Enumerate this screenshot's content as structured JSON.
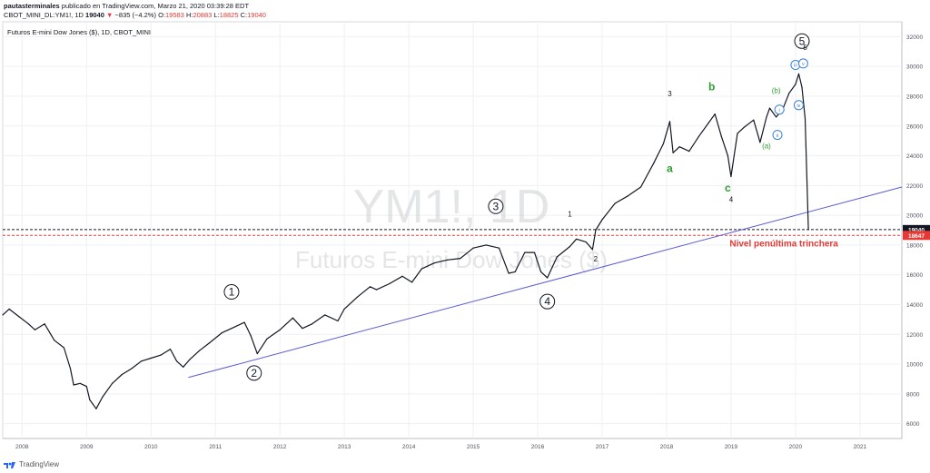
{
  "header": {
    "author": "pautasterminales",
    "published": "publicado en TradingView.com, Marzo 21, 2020 03:39:28 EDT",
    "ticker_line": "CBOT_MINI_DL:YM1!, 1D",
    "last": "19040",
    "change": "−835 (−4.2%)",
    "o_label": "O:",
    "o": "19583",
    "h_label": "H:",
    "h": "20883",
    "l_label": "L:",
    "l": "18825",
    "c_label": "C:",
    "c": "19040"
  },
  "legend_title": "Futuros E-mini Dow Jones ($), 1D, CBOT_MINI",
  "watermark": {
    "symbol": "YM1!, 1D",
    "name": "Futuros E-mini Dow Jones ($)"
  },
  "footer": {
    "brand": "TradingView"
  },
  "colors": {
    "price": "#131722",
    "trendline": "#5b5bd6",
    "dashed_black": "#131722",
    "dashed_red": "#e53935",
    "wave_green": "#2e9e2e",
    "wave_blue": "#3a7fd4"
  },
  "chart_data": {
    "type": "line",
    "title": "Futuros E-mini Dow Jones ($), 1D, CBOT_MINI",
    "x_axis_ticks": [
      "2008",
      "2009",
      "2010",
      "2011",
      "2012",
      "2013",
      "2014",
      "2015",
      "2016",
      "2017",
      "2018",
      "2019",
      "2020",
      "2021"
    ],
    "y_axis_ticks": [
      6000,
      8000,
      10000,
      12000,
      14000,
      16000,
      18000,
      20000,
      22000,
      24000,
      26000,
      28000,
      30000,
      32000
    ],
    "ylim": [
      5000,
      33000
    ],
    "xlim": [
      2007.7,
      2021.65
    ],
    "series": [
      {
        "x": [
          2007.7,
          2007.8,
          2007.95,
          2008.1,
          2008.2,
          2008.35,
          2008.5,
          2008.65,
          2008.75,
          2008.8,
          2008.9,
          2009.0,
          2009.05,
          2009.15,
          2009.25,
          2009.4,
          2009.55,
          2009.7,
          2009.85,
          2010.0,
          2010.15,
          2010.3,
          2010.4,
          2010.5,
          2010.6,
          2010.75,
          2010.9,
          2011.1,
          2011.3,
          2011.45,
          2011.55,
          2011.65,
          2011.8,
          2012.0,
          2012.2,
          2012.35,
          2012.5,
          2012.7,
          2012.9,
          2013.0,
          2013.2,
          2013.4,
          2013.5,
          2013.7,
          2013.9,
          2014.05,
          2014.2,
          2014.4,
          2014.6,
          2014.8,
          2015.0,
          2015.2,
          2015.4,
          2015.55,
          2015.65,
          2015.8,
          2015.95,
          2016.05,
          2016.15,
          2016.3,
          2016.5,
          2016.6,
          2016.75,
          2016.85,
          2016.9,
          2017.0,
          2017.2,
          2017.4,
          2017.6,
          2017.8,
          2017.95,
          2018.05,
          2018.1,
          2018.2,
          2018.35,
          2018.5,
          2018.65,
          2018.75,
          2018.85,
          2018.95,
          2019.0,
          2019.1,
          2019.2,
          2019.35,
          2019.45,
          2019.55,
          2019.6,
          2019.7,
          2019.8,
          2019.9,
          2020.0,
          2020.05,
          2020.1,
          2020.15,
          2020.2
        ],
        "values": [
          13300,
          13700,
          13200,
          12700,
          12300,
          12700,
          11600,
          11100,
          9700,
          8600,
          8700,
          8500,
          7600,
          7000,
          7800,
          8700,
          9300,
          9700,
          10200,
          10400,
          10600,
          11000,
          10200,
          9800,
          10300,
          10900,
          11400,
          12100,
          12500,
          12800,
          11900,
          10700,
          11700,
          12300,
          13100,
          12400,
          12700,
          13300,
          12900,
          13700,
          14500,
          15200,
          15000,
          15400,
          15900,
          15500,
          16400,
          16800,
          17000,
          17100,
          17800,
          18000,
          17800,
          16100,
          16200,
          17500,
          17500,
          16200,
          15800,
          17200,
          17900,
          18400,
          18200,
          17700,
          19000,
          19700,
          20800,
          21300,
          21900,
          23500,
          24800,
          26300,
          24200,
          24600,
          24300,
          25300,
          26200,
          26800,
          25300,
          24000,
          22600,
          25500,
          25900,
          26400,
          24900,
          26600,
          27200,
          26600,
          27100,
          28200,
          28800,
          29500,
          28600,
          26500,
          19040
        ]
      }
    ],
    "hlines": [
      {
        "value": 19040,
        "style": "dashed",
        "color": "#131722",
        "label": "19040"
      },
      {
        "value": 18647,
        "style": "dashed",
        "color": "#e53935",
        "label": "18647"
      }
    ],
    "trendline": {
      "x": [
        2010.58,
        2021.65
      ],
      "values": [
        9100,
        21900
      ]
    },
    "annotations": [
      {
        "text": "Nivel penúltima trinchera",
        "x": 2019.82,
        "y": 17900,
        "color": "#e53935"
      },
      {
        "text": "1",
        "x": 2011.25,
        "y": 14850,
        "circled": true,
        "color": "#131722"
      },
      {
        "text": "2",
        "x": 2011.6,
        "y": 9400,
        "circled": true,
        "color": "#131722"
      },
      {
        "text": "3",
        "x": 2015.35,
        "y": 20600,
        "circled": true,
        "color": "#131722"
      },
      {
        "text": "4",
        "x": 2016.15,
        "y": 14200,
        "circled": true,
        "color": "#131722"
      },
      {
        "text": "5",
        "x": 2020.1,
        "y": 31700,
        "circled": true,
        "color": "#131722"
      },
      {
        "text": "1",
        "x": 2016.5,
        "y": 19900,
        "color": "#131722"
      },
      {
        "text": "2",
        "x": 2016.9,
        "y": 16900,
        "color": "#131722"
      },
      {
        "text": "3",
        "x": 2018.05,
        "y": 28000,
        "color": "#131722"
      },
      {
        "text": "4",
        "x": 2019.0,
        "y": 20900,
        "color": "#131722"
      },
      {
        "text": "5",
        "x": 2020.15,
        "y": 31100,
        "color": "#131722"
      },
      {
        "text": "a",
        "x": 2018.05,
        "y": 22900,
        "color": "#2e9e2e"
      },
      {
        "text": "b",
        "x": 2018.7,
        "y": 28400,
        "color": "#2e9e2e"
      },
      {
        "text": "c",
        "x": 2018.95,
        "y": 21600,
        "color": "#2e9e2e"
      },
      {
        "text": "(a)",
        "x": 2019.55,
        "y": 24500,
        "color": "#2e9e2e"
      },
      {
        "text": "(b)",
        "x": 2019.7,
        "y": 28200,
        "color": "#2e9e2e"
      },
      {
        "text": "i",
        "x": 2019.75,
        "y": 27100,
        "circled": true,
        "color": "#3a7fd4"
      },
      {
        "text": "ii",
        "x": 2019.72,
        "y": 25400,
        "circled": true,
        "color": "#3a7fd4"
      },
      {
        "text": "iii",
        "x": 2020.0,
        "y": 30100,
        "circled": true,
        "color": "#3a7fd4"
      },
      {
        "text": "iv",
        "x": 2020.05,
        "y": 27400,
        "circled": true,
        "color": "#3a7fd4"
      },
      {
        "text": "v",
        "x": 2020.12,
        "y": 30200,
        "circled": true,
        "color": "#3a7fd4"
      }
    ]
  }
}
